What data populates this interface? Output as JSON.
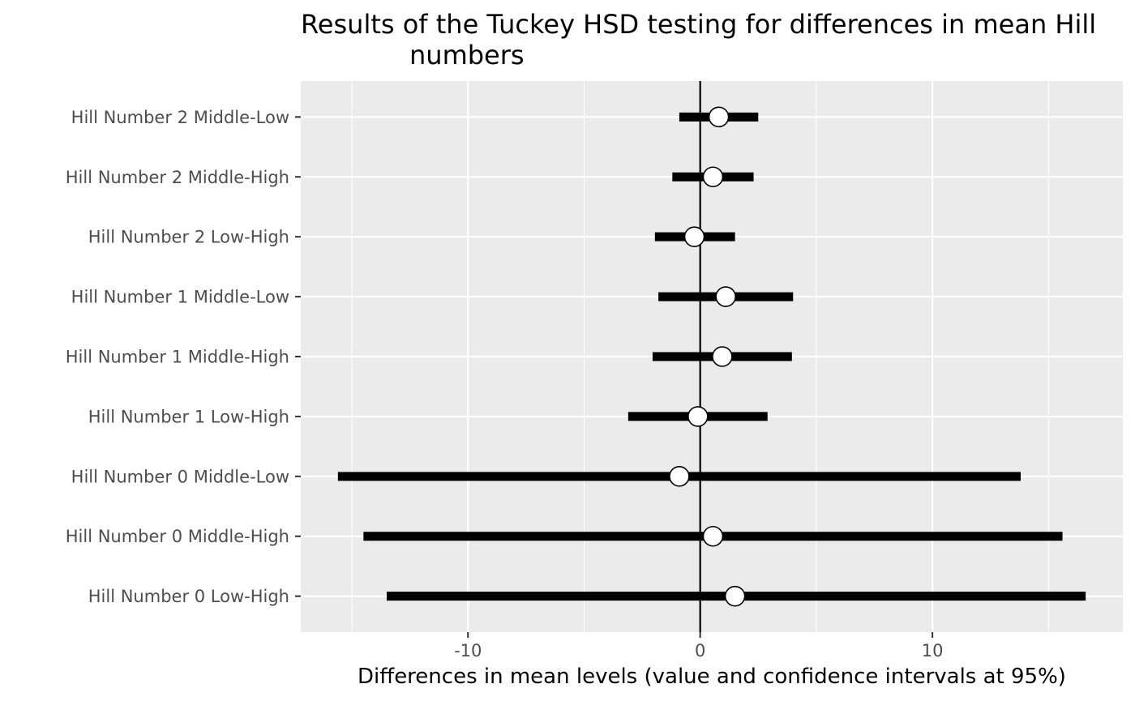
{
  "chart_data": {
    "type": "scatter",
    "title_lines": [
      "Results of the Tuckey HSD testing for differences in mean Hill",
      "numbers"
    ],
    "xlabel": "Differences in mean levels (value and confidence intervals at 95%)",
    "ylabel": "",
    "xlim": [
      -17.2,
      18.2
    ],
    "xticks": [
      -10,
      0,
      10
    ],
    "xtick_labels": [
      "-10",
      "0",
      "10"
    ],
    "x_minor_ticks": [
      -15,
      -5,
      5,
      15
    ],
    "reference_line_x": 0,
    "grid": true,
    "legend": "none",
    "categories": [
      "Hill Number 2 Middle-Low",
      "Hill Number 2 Middle-High",
      "Hill Number 2 Low-High",
      "Hill Number 1 Middle-Low",
      "Hill Number 1 Middle-High",
      "Hill Number 1 Low-High",
      "Hill Number 0 Middle-Low",
      "Hill Number 0 Middle-High",
      "Hill Number 0 Low-High"
    ],
    "values": [
      0.8,
      0.55,
      -0.25,
      1.1,
      0.95,
      -0.1,
      -0.9,
      0.55,
      1.5
    ],
    "lower": [
      -0.9,
      -1.2,
      -1.95,
      -1.8,
      -2.05,
      -3.1,
      -15.6,
      -14.5,
      -13.5
    ],
    "upper": [
      2.5,
      2.3,
      1.5,
      4.0,
      3.95,
      2.9,
      13.8,
      15.6,
      16.6
    ],
    "colors": {
      "panel_background": "#ebebeb",
      "grid": "#ffffff",
      "interval": "#000000",
      "point_fill": "#ffffff",
      "point_stroke": "#000000",
      "reference_line": "#000000"
    }
  }
}
